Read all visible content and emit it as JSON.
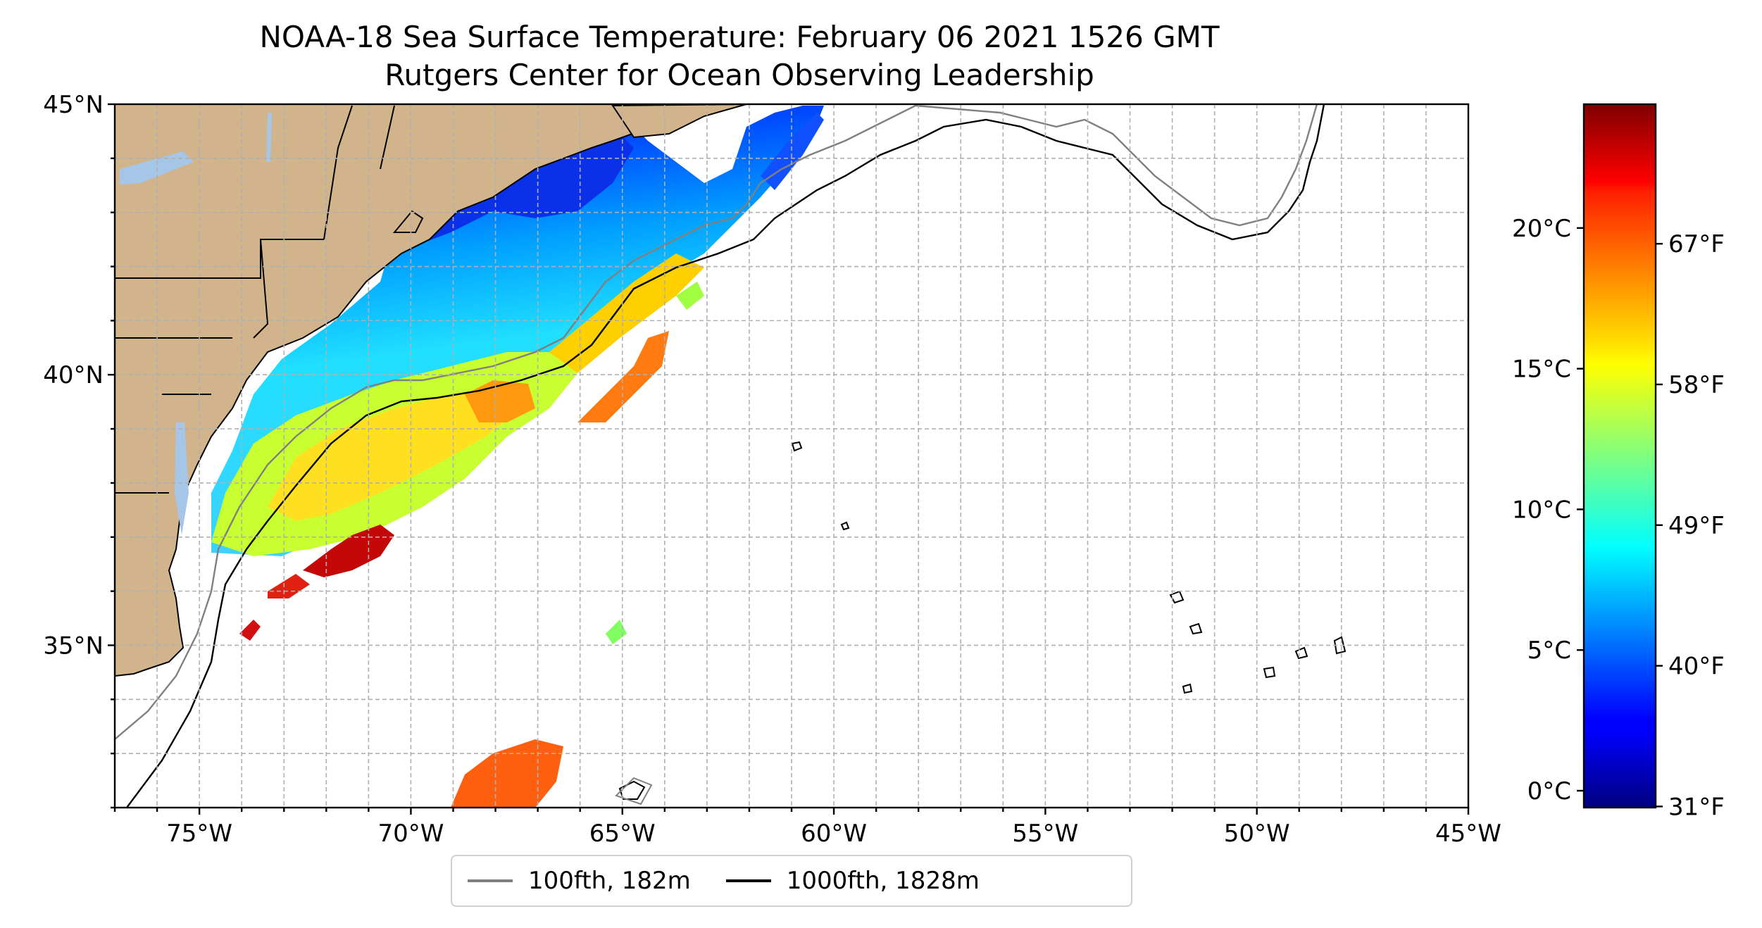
{
  "title": {
    "line1": "NOAA-18 Sea Surface Temperature: February 06 2021 1526 GMT",
    "line2": "Rutgers Center for Ocean Observing Leadership"
  },
  "map": {
    "lon_range": [
      -77,
      -45
    ],
    "lat_range": [
      32,
      45
    ],
    "lon_ticks": [
      {
        "value": -75,
        "label": "75°W"
      },
      {
        "value": -70,
        "label": "70°W"
      },
      {
        "value": -65,
        "label": "65°W"
      },
      {
        "value": -60,
        "label": "60°W"
      },
      {
        "value": -55,
        "label": "55°W"
      },
      {
        "value": -50,
        "label": "50°W"
      },
      {
        "value": -45,
        "label": "45°W"
      }
    ],
    "lat_ticks": [
      {
        "value": 45,
        "label": "45°N"
      },
      {
        "value": 40,
        "label": "40°N"
      },
      {
        "value": 35,
        "label": "35°N"
      }
    ],
    "grid": true,
    "land_color": "#d2b48c",
    "lake_color": "#a6c6e8"
  },
  "colorbar": {
    "colormap": "jet",
    "range_c": [
      -0.6,
      24.4
    ],
    "celsius_ticks": [
      {
        "value": 0,
        "label": "0°C"
      },
      {
        "value": 5,
        "label": "5°C"
      },
      {
        "value": 10,
        "label": "10°C"
      },
      {
        "value": 15,
        "label": "15°C"
      },
      {
        "value": 20,
        "label": "20°C"
      }
    ],
    "fahrenheit_ticks": [
      {
        "value_c": -0.56,
        "label": "31°F"
      },
      {
        "value_c": 4.44,
        "label": "40°F"
      },
      {
        "value_c": 9.44,
        "label": "49°F"
      },
      {
        "value_c": 14.44,
        "label": "58°F"
      },
      {
        "value_c": 19.44,
        "label": "67°F"
      }
    ]
  },
  "legend": {
    "entries": [
      {
        "label": "100fth, 182m",
        "color": "#808080"
      },
      {
        "label": "1000fth, 1828m",
        "color": "#000000"
      }
    ]
  }
}
